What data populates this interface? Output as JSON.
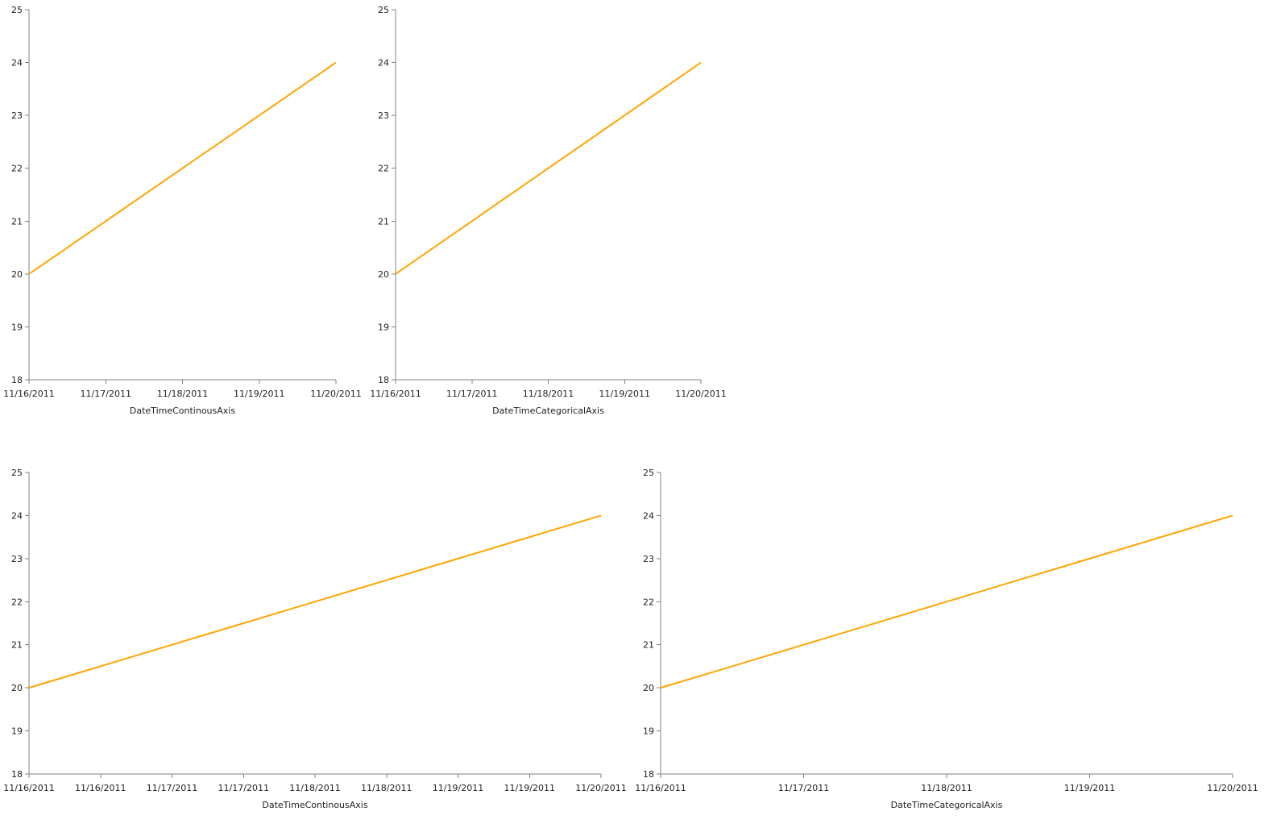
{
  "colors": {
    "series": "#FFA500",
    "axis": "#808080",
    "text": "#222222"
  },
  "chart_data": [
    {
      "type": "line",
      "categories": [
        "11/16/2011",
        "11/17/2011",
        "11/18/2011",
        "11/19/2011",
        "11/20/2011"
      ],
      "x_tick_labels": [
        "11/16/2011",
        "11/17/2011",
        "11/18/2011",
        "11/19/2011",
        "11/20/2011"
      ],
      "series": [
        {
          "values": [
            20,
            21,
            22,
            23,
            24
          ]
        }
      ],
      "xlabel": "DateTimeContinousAxis",
      "ylabel": "",
      "ylim": [
        18,
        25
      ],
      "y_ticks": [
        18,
        19,
        20,
        21,
        22,
        23,
        24,
        25
      ],
      "grid": false
    },
    {
      "type": "line",
      "categories": [
        "11/16/2011",
        "11/17/2011",
        "11/18/2011",
        "11/19/2011",
        "11/20/2011"
      ],
      "x_tick_labels": [
        "11/16/2011",
        "11/17/2011",
        "11/18/2011",
        "11/19/2011",
        "11/20/2011"
      ],
      "series": [
        {
          "values": [
            20,
            21,
            22,
            23,
            24
          ]
        }
      ],
      "xlabel": "DateTimeCategoricalAxis",
      "ylabel": "",
      "ylim": [
        18,
        25
      ],
      "y_ticks": [
        18,
        19,
        20,
        21,
        22,
        23,
        24,
        25
      ],
      "grid": false
    },
    {
      "type": "line",
      "categories": [
        "11/16/2011",
        "11/17/2011",
        "11/18/2011",
        "11/19/2011",
        "11/20/2011"
      ],
      "x_tick_labels": [
        "11/16/2011",
        "11/16/2011",
        "11/17/2011",
        "11/17/2011",
        "11/18/2011",
        "11/18/2011",
        "11/19/2011",
        "11/19/2011",
        "11/20/2011"
      ],
      "series": [
        {
          "values": [
            20,
            21,
            22,
            23,
            24
          ]
        }
      ],
      "xlabel": "DateTimeContinousAxis",
      "ylabel": "",
      "ylim": [
        18,
        25
      ],
      "y_ticks": [
        18,
        19,
        20,
        21,
        22,
        23,
        24,
        25
      ],
      "grid": false
    },
    {
      "type": "line",
      "categories": [
        "11/16/2011",
        "11/17/2011",
        "11/18/2011",
        "11/19/2011",
        "11/20/2011"
      ],
      "x_tick_labels": [
        "11/16/2011",
        "11/17/2011",
        "11/18/2011",
        "11/19/2011",
        "11/20/2011"
      ],
      "series": [
        {
          "values": [
            20,
            21,
            22,
            23,
            24
          ]
        }
      ],
      "xlabel": "DateTimeCategoricalAxis",
      "ylabel": "",
      "ylim": [
        18,
        25
      ],
      "y_ticks": [
        18,
        19,
        20,
        21,
        22,
        23,
        24,
        25
      ],
      "grid": false
    }
  ]
}
